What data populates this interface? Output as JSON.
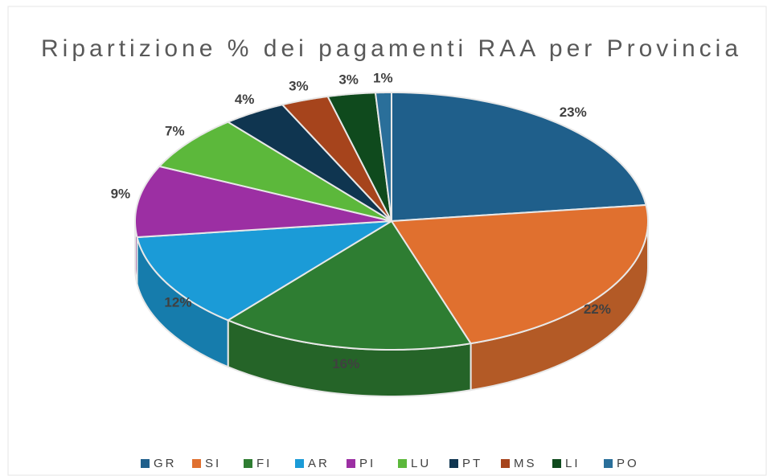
{
  "chart_data": {
    "type": "pie",
    "title": "Ripartizione % dei pagamenti RAA per Provincia",
    "categories": [
      "GR",
      "SI",
      "FI",
      "AR",
      "PI",
      "LU",
      "PT",
      "MS",
      "LI",
      "PO"
    ],
    "values": [
      23,
      22,
      16,
      12,
      9,
      7,
      4,
      3,
      3,
      1
    ],
    "value_labels": [
      "23%",
      "22%",
      "16%",
      "12%",
      "9%",
      "7%",
      "4%",
      "3%",
      "3%",
      "1%"
    ],
    "colors": [
      "#1f5f8b",
      "#e0702f",
      "#2e7d32",
      "#1b9bd7",
      "#9c2fa3",
      "#5cb83b",
      "#0f3550",
      "#a6441c",
      "#0f4a1d",
      "#2a6f9a"
    ],
    "legend": "bottom"
  }
}
